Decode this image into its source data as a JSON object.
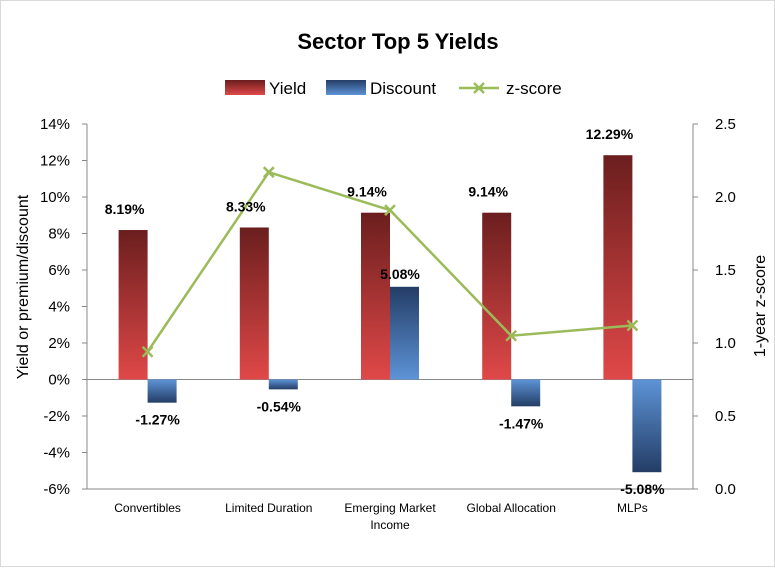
{
  "colors": {
    "yield_top": "#6b1e1e",
    "yield_bottom": "#e04848",
    "discount_top": "#243d66",
    "discount_bottom": "#5d93d6",
    "zscore": "#9bbb59"
  },
  "chart_data": {
    "type": "bar",
    "title": "Sector Top 5 Yields",
    "categories": [
      [
        "Convertibles"
      ],
      [
        "Limited Duration"
      ],
      [
        "Emerging Market",
        "Income"
      ],
      [
        "Global Allocation"
      ],
      [
        "MLPs"
      ]
    ],
    "series": [
      {
        "name": "Yield",
        "type": "bar",
        "axis": "left",
        "values": [
          8.19,
          8.33,
          9.14,
          9.14,
          12.29
        ],
        "labels": [
          "8.19%",
          "8.33%",
          "9.14%",
          "9.14%",
          "12.29%"
        ]
      },
      {
        "name": "Discount",
        "type": "bar",
        "axis": "left",
        "values": [
          -1.27,
          -0.54,
          5.08,
          -1.47,
          -5.08
        ],
        "labels": [
          "-1.27%",
          "-0.54%",
          "5.08%",
          "-1.47%",
          "-5.08%"
        ]
      },
      {
        "name": "z-score",
        "type": "line",
        "axis": "right",
        "marker": "x",
        "values": [
          0.94,
          2.17,
          1.91,
          1.05,
          1.12
        ]
      }
    ],
    "ylabel": "Yield or premium/discount",
    "y2label": "1-year z-score",
    "ylim": [
      -6,
      14
    ],
    "y2lim": [
      0,
      2.5
    ],
    "yticks": [
      "14%",
      "12%",
      "10%",
      "8%",
      "6%",
      "4%",
      "2%",
      "0%",
      "-2%",
      "-4%",
      "-6%"
    ],
    "y2ticks": [
      "2.5",
      "2.0",
      "1.5",
      "1.0",
      "0.5",
      "0.0"
    ],
    "legend": "top",
    "grid": false
  }
}
